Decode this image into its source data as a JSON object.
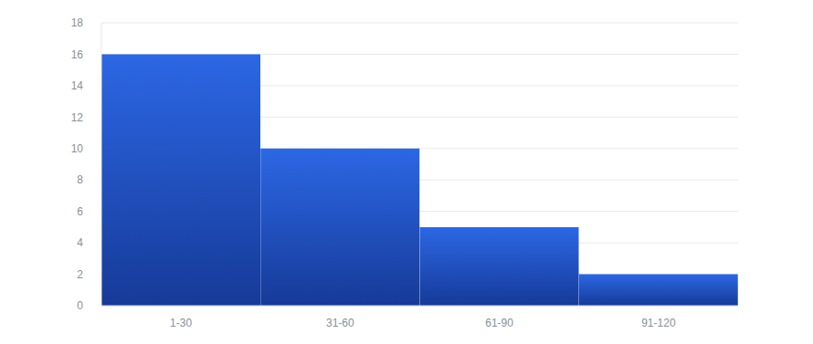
{
  "chart_data": {
    "type": "bar",
    "categories": [
      "1-30",
      "31-60",
      "61-90",
      "91-120"
    ],
    "values": [
      16,
      10,
      5,
      2
    ],
    "color": "#2c67e4",
    "ylim": [
      0,
      18
    ],
    "yticks": [
      0,
      2,
      4,
      6,
      8,
      10,
      12,
      14,
      16,
      18
    ],
    "grid": true
  }
}
